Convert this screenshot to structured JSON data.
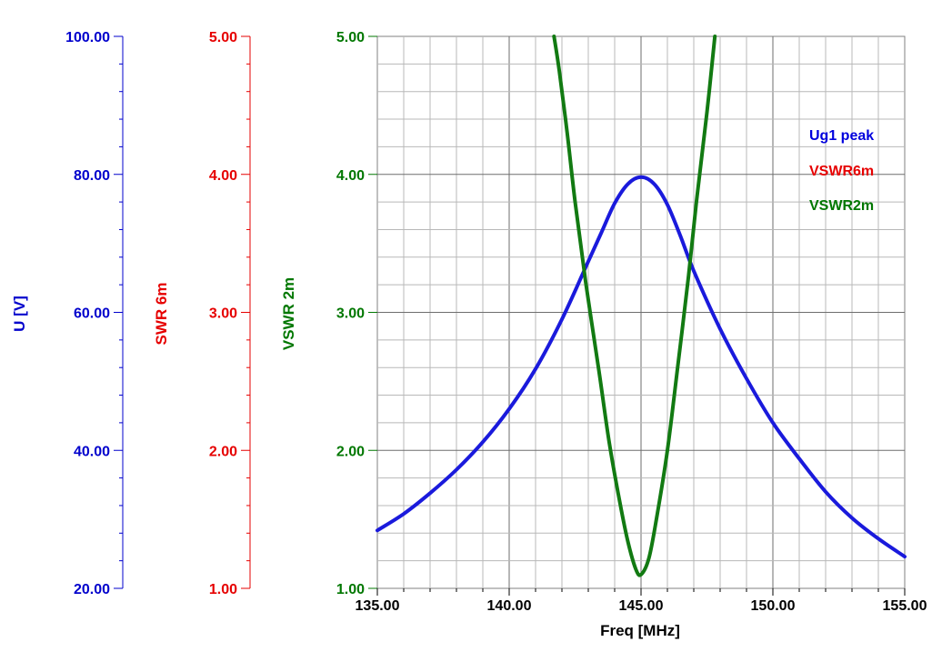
{
  "chart_data": {
    "type": "line",
    "x_axis": {
      "label": "Freq [MHz]",
      "range": [
        135,
        155
      ],
      "ticks": [
        "135.00",
        "140.00",
        "145.00",
        "150.00",
        "155.00"
      ],
      "tick_values": [
        135,
        140,
        145,
        150,
        155
      ],
      "grid": true
    },
    "y_axes": [
      {
        "id": "u",
        "label": "U [V]",
        "color": "#0000cc",
        "range": [
          20,
          100
        ],
        "ticks": [
          "20.00",
          "40.00",
          "60.00",
          "80.00",
          "100.00"
        ],
        "tick_values": [
          20,
          40,
          60,
          80,
          100
        ]
      },
      {
        "id": "swr6",
        "label": "SWR 6m",
        "color": "#e60000",
        "range": [
          1,
          5
        ],
        "ticks": [
          "1.00",
          "2.00",
          "3.00",
          "4.00",
          "5.00"
        ],
        "tick_values": [
          1,
          2,
          3,
          4,
          5
        ]
      },
      {
        "id": "vswr2",
        "label": "VSWR 2m",
        "color": "#007700",
        "range": [
          1,
          5
        ],
        "ticks": [
          "1.00",
          "2.00",
          "3.00",
          "4.00",
          "5.00"
        ],
        "tick_values": [
          1,
          2,
          3,
          4,
          5
        ]
      }
    ],
    "grid_labels": [
      "1.00",
      "2.00",
      "3.00",
      "4.00",
      "5.00"
    ],
    "grid_label_values": [
      1,
      2,
      3,
      4,
      5
    ],
    "legend": {
      "placement": "top-right",
      "entries": [
        {
          "name": "Ug1 peak",
          "color": "#0000dd"
        },
        {
          "name": "VSWR6m",
          "color": "#e60000"
        },
        {
          "name": "VSWR2m",
          "color": "#007700"
        }
      ]
    },
    "series": [
      {
        "name": "Ug1 peak",
        "axis": "u",
        "color": "#1a1adc",
        "x": [
          135,
          136,
          137,
          138,
          139,
          140,
          141,
          142,
          143,
          143.5,
          144,
          144.5,
          145,
          145.5,
          146,
          146.5,
          147,
          148,
          149,
          150,
          151,
          152,
          153,
          154,
          155
        ],
        "y": [
          28.4,
          30.8,
          33.8,
          37.2,
          41.2,
          46.0,
          51.8,
          59.0,
          67.4,
          71.6,
          75.8,
          78.6,
          79.6,
          78.6,
          75.6,
          71.0,
          66.0,
          57.6,
          50.4,
          44.0,
          38.8,
          34.0,
          30.2,
          27.2,
          24.6
        ]
      },
      {
        "name": "VSWR2m",
        "axis": "vswr2",
        "color": "#127a12",
        "x": [
          141.7,
          141.9,
          142.2,
          142.5,
          142.9,
          143.4,
          143.8,
          144.2,
          144.5,
          144.8,
          145.0,
          145.3,
          145.6,
          146.0,
          146.4,
          146.8,
          147.1,
          147.5,
          147.8
        ],
        "y": [
          5.0,
          4.75,
          4.3,
          3.8,
          3.22,
          2.58,
          2.05,
          1.62,
          1.34,
          1.14,
          1.1,
          1.22,
          1.52,
          2.0,
          2.62,
          3.26,
          3.8,
          4.45,
          5.0
        ]
      }
    ]
  }
}
